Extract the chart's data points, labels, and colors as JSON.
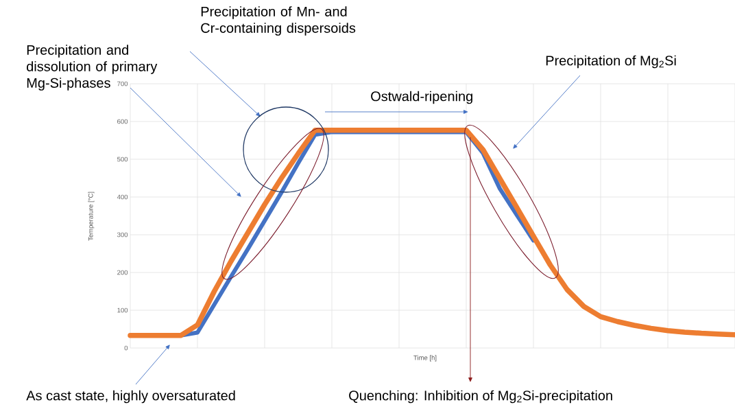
{
  "chart_data": {
    "type": "line",
    "xlabel": "Time [h]",
    "ylabel": "Temperature [°C]",
    "categories": [
      null,
      null,
      null,
      null,
      null,
      null,
      null,
      null,
      null,
      null,
      null,
      null,
      null,
      null,
      null,
      null,
      null,
      null,
      null,
      null,
      null,
      null,
      null,
      null,
      null,
      null,
      null,
      null,
      null,
      null,
      null,
      null,
      null,
      null,
      null,
      null,
      null
    ],
    "ylim": [
      0,
      700
    ],
    "yticks": [
      0,
      100,
      200,
      300,
      400,
      500,
      600,
      700
    ],
    "tick_labels": "y",
    "grid": true,
    "marker": "none",
    "line_style": "solid",
    "series": [
      {
        "color": "#4472c4",
        "values": [
          null,
          null,
          null,
          33,
          41,
          115,
          189,
          262,
          337,
          412,
          490,
          565,
          572,
          572,
          572,
          572,
          572,
          572,
          572,
          572,
          572,
          516,
          422,
          353,
          285,
          null,
          null,
          null,
          null,
          null,
          null,
          null,
          null,
          null,
          null,
          null,
          null
        ]
      },
      {
        "color": "#ed7d31",
        "values": [
          33,
          33,
          33,
          33,
          61,
          150,
          230,
          305,
          380,
          450,
          515,
          577,
          577,
          577,
          577,
          577,
          577,
          577,
          577,
          577,
          577,
          525,
          449,
          373,
          296,
          220,
          155,
          110,
          83,
          70,
          60,
          52,
          46,
          42,
          39,
          37,
          35
        ]
      }
    ],
    "annotations": [
      "Precipitation of Mn- and Cr-containing dispersoids",
      "Precipitation and dissolution of primary Mg-Si-phases",
      "Precipitation of Mg$_{2}$Si",
      "Ostwald-ripening",
      "As cast state, highly oversaturated",
      "Quenching: Inhibition of Mg$_{2}$Si-precipitation"
    ]
  }
}
